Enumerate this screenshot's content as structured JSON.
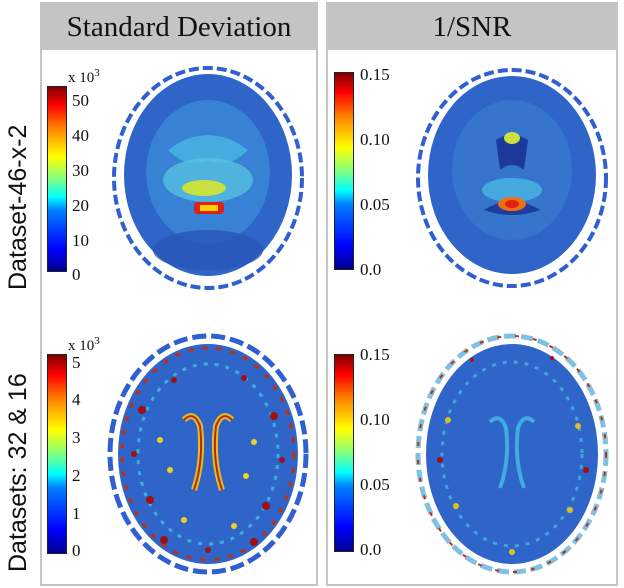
{
  "columns": {
    "left": "Standard Deviation",
    "right": "1/SNR"
  },
  "rows": {
    "top": "Dataset-46-x-2",
    "bottom": "Datasets: 32 & 16"
  },
  "colorbars": {
    "std_top": {
      "multiplier_base": "x 10",
      "multiplier_exp": "3",
      "ticks": [
        "50",
        "40",
        "30",
        "20",
        "10",
        "0"
      ]
    },
    "snr_top": {
      "ticks": [
        "0.15",
        "0.10",
        "0.05",
        "0.0"
      ]
    },
    "std_bottom": {
      "multiplier_base": "x 10",
      "multiplier_exp": "3",
      "ticks": [
        "5",
        "4",
        "3",
        "2",
        "1",
        "0"
      ]
    },
    "snr_bottom": {
      "ticks": [
        "0.15",
        "0.10",
        "0.05",
        "0.0"
      ]
    }
  },
  "colors": {
    "header_bg": "#c4c4c4",
    "frame": "#c4c4c4",
    "brain_base": "#2f64c8"
  }
}
